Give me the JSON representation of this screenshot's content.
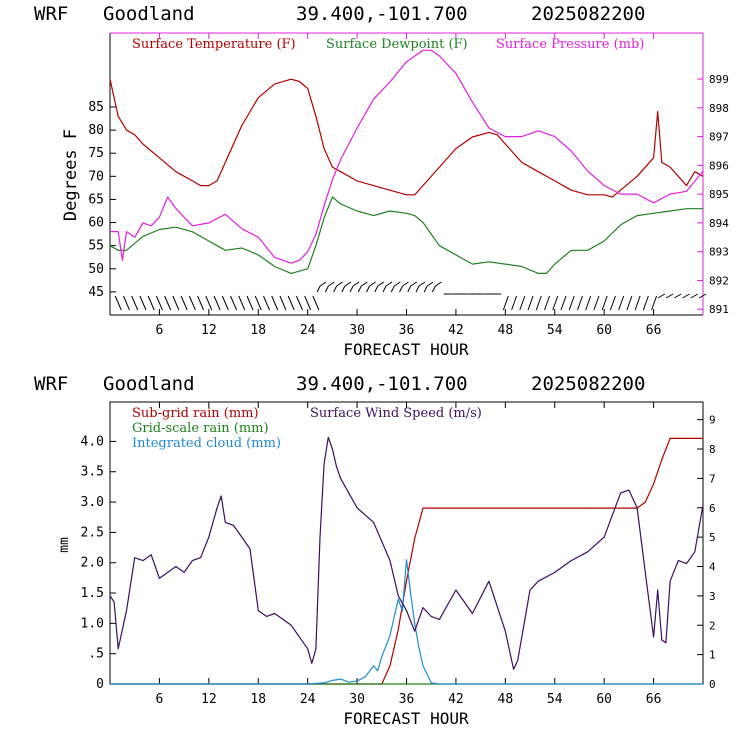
{
  "chart_data": [
    {
      "type": "line",
      "header": {
        "model": "WRF",
        "location": "Goodland",
        "coords": "39.400,-101.700",
        "run": "2025082200"
      },
      "xlabel": "FORECAST HOUR",
      "ylabel": "Degrees F",
      "xlim": [
        0,
        72
      ],
      "x_ticks": [
        6,
        12,
        18,
        24,
        30,
        36,
        42,
        48,
        54,
        60,
        66
      ],
      "ylim": [
        40,
        101
      ],
      "y_ticks": [
        45,
        50,
        55,
        60,
        65,
        70,
        75,
        80,
        85
      ],
      "y2lim": [
        890.8,
        900.6
      ],
      "y2_ticks": [
        891,
        892,
        893,
        894,
        895,
        896,
        897,
        898,
        899
      ],
      "legend_placement": "top",
      "series": [
        {
          "name": "Surface Temperature (F)",
          "color": "#b00000",
          "axis": "left",
          "x": [
            0,
            1,
            2,
            3,
            4,
            6,
            8,
            10,
            11,
            12,
            13,
            14,
            16,
            18,
            20,
            22,
            23,
            24,
            25,
            26,
            27,
            28,
            30,
            33,
            36,
            37,
            38,
            40,
            42,
            44,
            46,
            47,
            48,
            50,
            52,
            54,
            56,
            58,
            60,
            61,
            62,
            64,
            66,
            66.5,
            67,
            68,
            69,
            70,
            71,
            72
          ],
          "values": [
            91,
            83,
            80,
            79,
            77,
            74,
            71,
            69,
            68,
            68,
            69,
            73,
            81,
            87,
            90,
            91,
            90.5,
            89,
            83,
            76,
            72,
            71,
            69,
            67.5,
            66,
            66,
            68,
            72,
            76,
            78.5,
            79.5,
            79,
            77,
            73,
            71,
            69,
            67,
            66,
            66,
            65.5,
            67,
            70,
            74,
            84,
            73,
            72,
            70,
            68,
            71,
            70
          ]
        },
        {
          "name": "Surface Dewpoint (F)",
          "color": "#208020",
          "axis": "left",
          "x": [
            0,
            1,
            2,
            4,
            6,
            8,
            10,
            12,
            14,
            16,
            18,
            20,
            22,
            24,
            25,
            26,
            27,
            28,
            30,
            32,
            34,
            36,
            37,
            38,
            40,
            42,
            44,
            46,
            48,
            50,
            52,
            53,
            54,
            56,
            58,
            60,
            62,
            64,
            66,
            68,
            70,
            72
          ],
          "values": [
            55,
            54,
            54,
            57,
            58.5,
            59,
            58,
            56,
            54,
            54.5,
            53,
            50.5,
            49,
            50,
            55,
            61,
            65.5,
            64,
            62.5,
            61.5,
            62.5,
            62,
            61.5,
            60,
            55,
            53,
            51,
            51.5,
            51,
            50.5,
            49,
            49,
            51,
            54,
            54,
            56,
            59.5,
            61.5,
            62,
            62.5,
            63,
            63
          ]
        },
        {
          "name": "Surface Pressure (mb)",
          "color": "#e020e0",
          "axis": "right",
          "x": [
            0,
            1,
            1.5,
            2,
            3,
            4,
            5,
            6,
            7,
            8,
            9,
            10,
            12,
            14,
            16,
            18,
            20,
            22,
            23,
            24,
            25,
            26,
            27,
            28,
            30,
            32,
            34,
            36,
            38,
            39,
            40,
            42,
            44,
            46,
            48,
            50,
            52,
            54,
            56,
            58,
            60,
            62,
            64,
            66,
            68,
            70,
            72
          ],
          "values": [
            893.7,
            893.7,
            892.7,
            893.7,
            893.5,
            894.0,
            893.9,
            894.2,
            894.9,
            894.5,
            894.2,
            893.9,
            894.0,
            894.3,
            893.8,
            893.5,
            892.8,
            892.6,
            892.7,
            893.0,
            893.6,
            894.6,
            895.5,
            896.2,
            897.3,
            898.3,
            898.9,
            899.6,
            900.0,
            900.0,
            899.8,
            899.2,
            898.2,
            897.3,
            897.0,
            897.0,
            897.2,
            897.0,
            896.5,
            895.8,
            895.3,
            895.0,
            895.0,
            894.7,
            895.0,
            895.1,
            895.8
          ]
        }
      ],
      "wind_barbs_band": true
    },
    {
      "type": "line",
      "header": {
        "model": "WRF",
        "location": "Goodland",
        "coords": "39.400,-101.700",
        "run": "2025082200"
      },
      "xlabel": "FORECAST HOUR",
      "ylabel": "mm",
      "xlim": [
        0,
        72
      ],
      "x_ticks": [
        6,
        12,
        18,
        24,
        30,
        36,
        42,
        48,
        54,
        60,
        66
      ],
      "ylim": [
        0,
        4.65
      ],
      "y_ticks": [
        0,
        0.5,
        1.0,
        1.5,
        2.0,
        2.5,
        3.0,
        3.5,
        4.0
      ],
      "y_tick_labels": [
        "0",
        ".5",
        "1.0",
        "1.5",
        "2.0",
        "2.5",
        "3.0",
        "3.5",
        "4.0"
      ],
      "y2lim": [
        0,
        9.6
      ],
      "y2_ticks": [
        0,
        1,
        2,
        3,
        4,
        5,
        6,
        7,
        8,
        9
      ],
      "legend_placement": "top-left",
      "series": [
        {
          "name": "Sub-grid rain (mm)",
          "color": "#b00000",
          "axis": "left",
          "x": [
            0,
            33,
            34,
            35,
            36,
            37,
            38,
            40,
            50,
            60,
            64,
            65,
            66,
            67,
            68,
            69,
            72
          ],
          "values": [
            0,
            0,
            0.3,
            0.9,
            1.7,
            2.4,
            2.9,
            2.9,
            2.9,
            2.9,
            2.9,
            3.0,
            3.3,
            3.7,
            4.05,
            4.05,
            4.05
          ]
        },
        {
          "name": "Grid-scale rain (mm)",
          "color": "#208020",
          "axis": "left",
          "x": [
            0,
            72
          ],
          "values": [
            0,
            0
          ]
        },
        {
          "name": "Integrated cloud (mm)",
          "color": "#1e8cd2",
          "axis": "left",
          "x": [
            0,
            24,
            26,
            27,
            28,
            29,
            30,
            31,
            32,
            32.5,
            33,
            34,
            34.5,
            35,
            35.5,
            36,
            36.5,
            37,
            37.5,
            38,
            39,
            40,
            72
          ],
          "values": [
            0,
            0,
            0.02,
            0.06,
            0.08,
            0.03,
            0.05,
            0.12,
            0.3,
            0.22,
            0.45,
            0.8,
            1.1,
            1.4,
            1.2,
            2.05,
            1.5,
            1.0,
            0.6,
            0.3,
            0.02,
            0,
            0
          ]
        },
        {
          "name": "Surface Wind Speed (m/s)",
          "color": "#3a1060",
          "axis": "right",
          "x": [
            0,
            0.5,
            1,
            2,
            3,
            4,
            5,
            6,
            7,
            8,
            9,
            10,
            11,
            12,
            13,
            13.5,
            14,
            15,
            16,
            17,
            18,
            19,
            20,
            22,
            24,
            24.5,
            25,
            25.5,
            26,
            26.5,
            27,
            27.5,
            28,
            30,
            32,
            34,
            35,
            36,
            37,
            38,
            39,
            40,
            42,
            44,
            46,
            48,
            49,
            49.5,
            50,
            51,
            52,
            54,
            56,
            58,
            60,
            62,
            63,
            64,
            65,
            66,
            66.5,
            67,
            67.5,
            68,
            69,
            70,
            71,
            72
          ],
          "values": [
            3,
            2.8,
            1.2,
            2.5,
            4.3,
            4.2,
            4.4,
            3.6,
            3.8,
            4.0,
            3.8,
            4.2,
            4.3,
            5.0,
            6.0,
            6.4,
            5.5,
            5.4,
            5.0,
            4.6,
            2.5,
            2.3,
            2.4,
            2.0,
            1.2,
            0.7,
            1.2,
            5.0,
            7.5,
            8.4,
            8.0,
            7.4,
            7.0,
            6.0,
            5.5,
            4.2,
            3.0,
            2.5,
            1.8,
            2.6,
            2.3,
            2.2,
            3.2,
            2.4,
            3.5,
            1.8,
            0.5,
            0.8,
            1.6,
            3.2,
            3.5,
            3.8,
            4.2,
            4.5,
            5.0,
            6.5,
            6.6,
            6.0,
            3.8,
            1.6,
            3.2,
            1.5,
            1.4,
            3.5,
            4.2,
            4.1,
            4.5,
            6.1
          ]
        }
      ]
    }
  ]
}
